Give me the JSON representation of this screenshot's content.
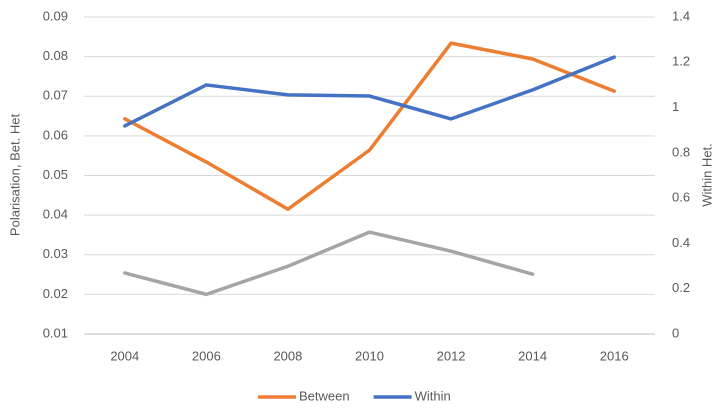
{
  "chart_data": {
    "type": "line",
    "categories": [
      "2004",
      "2006",
      "2008",
      "2010",
      "2012",
      "2014",
      "2016"
    ],
    "y_label": "Polarisation, Bet. Het",
    "y2_label": "Within Het.",
    "series": [
      {
        "name": "Between",
        "color": "#ed7d31",
        "values": [
          0.0643,
          0.0534,
          0.0415,
          0.0564,
          0.0834,
          0.0794,
          0.0713
        ]
      },
      {
        "name": "Within",
        "color": "#4472c4",
        "axis": "y2",
        "values": [
          0.919,
          1.1,
          1.056,
          1.051,
          0.95,
          1.078,
          1.223
        ]
      },
      {
        "color": "#a5a5a5",
        "values": [
          0.0254,
          0.02,
          0.0271,
          0.0357,
          0.0309,
          0.0251,
          null
        ]
      }
    ],
    "ylim": [
      0.01,
      0.09
    ],
    "yticks": [
      0.01,
      0.02,
      0.03,
      0.04,
      0.05,
      0.06,
      0.07,
      0.08,
      0.09
    ],
    "y2lim": [
      0,
      1.4
    ],
    "y2ticks": [
      0,
      0.2,
      0.4,
      0.6,
      0.8,
      1,
      1.2,
      1.4
    ],
    "grid": true,
    "legend": "bottom"
  }
}
